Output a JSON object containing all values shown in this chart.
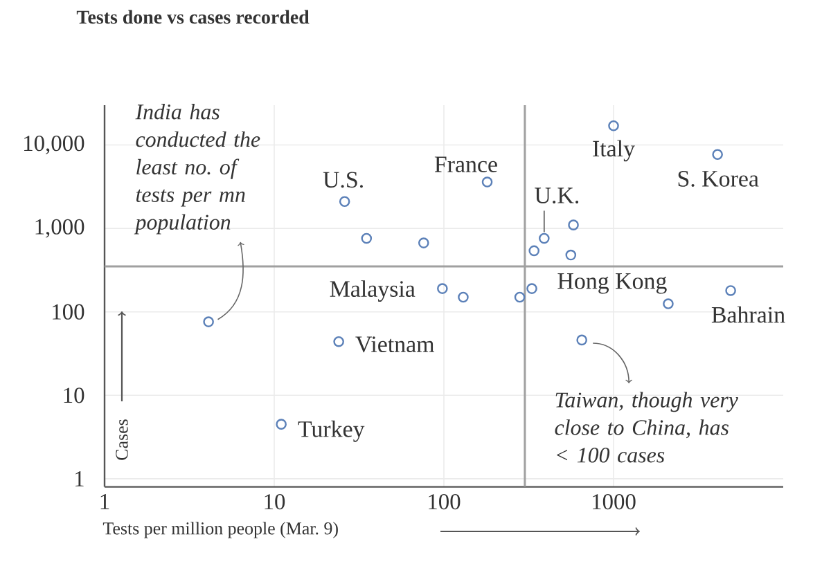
{
  "chart_data": {
    "type": "scatter",
    "title": "Tests done vs cases recorded",
    "xlabel": "Tests per million people (Mar. 9)",
    "ylabel": "Cases",
    "x": [
      4.1,
      11,
      24,
      26,
      35,
      76,
      98,
      130,
      180,
      280,
      330,
      340,
      390,
      560,
      580,
      650,
      1000,
      2100,
      4100,
      4900
    ],
    "values": [
      76,
      4.5,
      44,
      2100,
      760,
      670,
      190,
      150,
      3600,
      150,
      190,
      540,
      760,
      480,
      1100,
      46,
      17000,
      125,
      7700,
      180
    ],
    "color": "#5b80b8",
    "marker": "circle",
    "log": "xy",
    "grid": true,
    "xlim": [
      1,
      10000
    ],
    "ylim": [
      0.8,
      30000
    ],
    "xticks": [
      1,
      10,
      100,
      1000
    ],
    "yticks": [
      1,
      10,
      100,
      {
        "value": 1000,
        "label": "1,000"
      },
      {
        "value": 10000,
        "label": "10,000"
      }
    ],
    "ref_lines": [
      {
        "axis": "y",
        "value": 350,
        "color": "#a0a0a0"
      },
      {
        "axis": "x",
        "value": 300,
        "color": "#a0a0a0"
      }
    ],
    "annotations": [
      {
        "text": "India has conducted the least no. of tests per mn population",
        "x": 4.1,
        "y": 76
      },
      {
        "text": "U.S.",
        "x": 26,
        "y": 2100
      },
      {
        "text": "France",
        "x": 180,
        "y": 3600
      },
      {
        "text": "Italy",
        "x": 1000,
        "y": 17000
      },
      {
        "text": "S. Korea",
        "x": 4100,
        "y": 7700
      },
      {
        "text": "U.K.",
        "x": 390,
        "y": 760
      },
      {
        "text": "Malaysia",
        "x": 98,
        "y": 190
      },
      {
        "text": "Hong Kong",
        "x": 2100,
        "y": 125
      },
      {
        "text": "Bahrain",
        "x": 4900,
        "y": 180
      },
      {
        "text": "Vietnam",
        "x": 24,
        "y": 44
      },
      {
        "text": "Taiwan, though very close to China, has < 100 cases",
        "x": 650,
        "y": 46
      },
      {
        "text": "Turkey",
        "x": 11,
        "y": 4.5
      }
    ]
  }
}
